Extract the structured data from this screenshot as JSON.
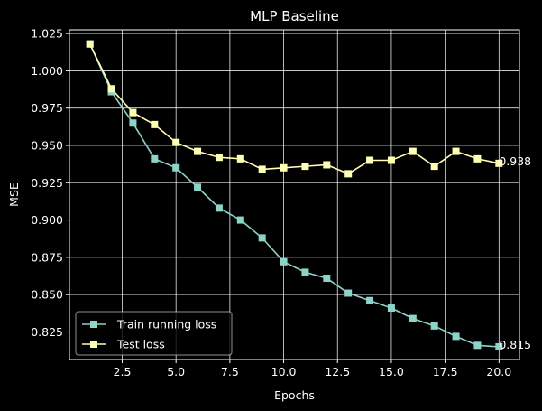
{
  "chart_data": {
    "type": "line",
    "title": "MLP Baseline",
    "xlabel": "Epochs",
    "ylabel": "MSE",
    "xlim": [
      0.05,
      20.95
    ],
    "ylim": [
      0.8065,
      1.0275
    ],
    "xticks": [
      2.5,
      5.0,
      7.5,
      10.0,
      12.5,
      15.0,
      17.5,
      20.0
    ],
    "xtick_labels": [
      "2.5",
      "5.0",
      "7.5",
      "10.0",
      "12.5",
      "15.0",
      "17.5",
      "20.0"
    ],
    "yticks": [
      0.825,
      0.85,
      0.875,
      0.9,
      0.925,
      0.95,
      0.975,
      1.0,
      1.025
    ],
    "ytick_labels": [
      "0.825",
      "0.850",
      "0.875",
      "0.900",
      "0.925",
      "0.950",
      "0.975",
      "1.000",
      "1.025"
    ],
    "grid": true,
    "legend_position": "lower-left",
    "x": [
      1,
      2,
      3,
      4,
      5,
      6,
      7,
      8,
      9,
      10,
      11,
      12,
      13,
      14,
      15,
      16,
      17,
      18,
      19,
      20
    ],
    "series": [
      {
        "name": "Train running loss",
        "color": "#8dd3c7",
        "marker": "square",
        "values": [
          1.018,
          0.986,
          0.965,
          0.941,
          0.935,
          0.922,
          0.908,
          0.9,
          0.888,
          0.872,
          0.865,
          0.861,
          0.851,
          0.846,
          0.841,
          0.834,
          0.829,
          0.822,
          0.816,
          0.815
        ],
        "end_label": "0.815"
      },
      {
        "name": "Test loss",
        "color": "#ffffb3",
        "marker": "square",
        "values": [
          1.018,
          0.988,
          0.972,
          0.964,
          0.952,
          0.946,
          0.942,
          0.941,
          0.934,
          0.935,
          0.936,
          0.937,
          0.931,
          0.94,
          0.94,
          0.946,
          0.936,
          0.946,
          0.941,
          0.938
        ],
        "end_label": "0.938"
      }
    ]
  }
}
